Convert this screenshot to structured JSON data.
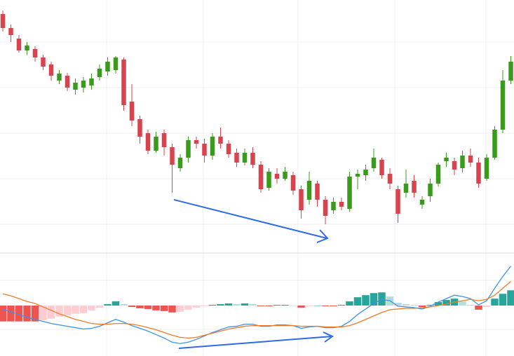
{
  "chart_data": [
    {
      "type": "candlestick",
      "up_color": "#3a9a1c",
      "down_color": "#d9434d",
      "ylim": [
        0,
        360
      ],
      "grid": true,
      "open": [
        340,
        320,
        305,
        288,
        290,
        278,
        268,
        245,
        252,
        232,
        235,
        238,
        250,
        258,
        260,
        275,
        215,
        190,
        170,
        145,
        170,
        150,
        120,
        135,
        160,
        155,
        138,
        165,
        155,
        142,
        128,
        142,
        125,
        92,
        112,
        105,
        110,
        90,
        75,
        98,
        75,
        60,
        72,
        62,
        108,
        110,
        120,
        132,
        112,
        90,
        85,
        102,
        68,
        80,
        98,
        130,
        130,
        120,
        138,
        128,
        105,
        135,
        175,
        245
      ],
      "high": [
        345,
        325,
        310,
        300,
        294,
        282,
        272,
        260,
        256,
        248,
        250,
        255,
        268,
        278,
        280,
        278,
        240,
        195,
        175,
        172,
        175,
        155,
        140,
        165,
        165,
        162,
        170,
        178,
        160,
        148,
        148,
        150,
        130,
        120,
        120,
        122,
        115,
        95,
        115,
        102,
        80,
        78,
        78,
        115,
        118,
        125,
        148,
        135,
        120,
        95,
        118,
        110,
        80,
        105,
        128,
        142,
        135,
        145,
        148,
        135,
        140,
        180,
        260,
        280
      ],
      "low": [
        315,
        300,
        285,
        282,
        272,
        260,
        245,
        240,
        230,
        225,
        228,
        232,
        245,
        252,
        255,
        202,
        180,
        155,
        140,
        142,
        138,
        85,
        115,
        128,
        148,
        128,
        132,
        148,
        135,
        122,
        124,
        120,
        85,
        88,
        98,
        102,
        82,
        48,
        68,
        65,
        40,
        55,
        60,
        58,
        90,
        102,
        115,
        105,
        90,
        42,
        78,
        78,
        62,
        72,
        94,
        122,
        110,
        114,
        122,
        92,
        102,
        132,
        170,
        240
      ],
      "close": [
        320,
        310,
        288,
        295,
        278,
        265,
        252,
        255,
        235,
        242,
        245,
        248,
        262,
        272,
        278,
        210,
        188,
        165,
        145,
        165,
        150,
        125,
        135,
        160,
        155,
        138,
        165,
        155,
        140,
        128,
        142,
        125,
        90,
        115,
        105,
        115,
        88,
        60,
        102,
        75,
        52,
        72,
        65,
        108,
        112,
        118,
        135,
        110,
        98,
        55,
        98,
        85,
        75,
        98,
        125,
        135,
        118,
        138,
        128,
        98,
        135,
        175,
        245,
        272
      ]
    },
    {
      "type": "macd",
      "ylim": [
        -7.3,
        7.5
      ],
      "hist_colors": {
        "up_strong": "#26a69a",
        "up_weak": "#b2dfdb",
        "down_strong": "#ef5350",
        "down_weak": "#ffcdd2"
      },
      "series": [
        {
          "type": "line",
          "color": "#3d93e6",
          "values": [
            -0.6,
            -0.9,
            -1.3,
            -1.7,
            -2.0,
            -2.3,
            -2.6,
            -2.8,
            -3.0,
            -3.2,
            -3.4,
            -3.3,
            -3.0,
            -2.5,
            -2.0,
            -2.4,
            -2.9,
            -3.3,
            -3.7,
            -4.2,
            -4.7,
            -5.3,
            -5.5,
            -5.3,
            -4.9,
            -4.4,
            -3.9,
            -3.5,
            -3.1,
            -3.0,
            -2.7,
            -2.7,
            -3.0,
            -3.0,
            -2.8,
            -2.8,
            -2.9,
            -3.3,
            -3.1,
            -3.0,
            -3.2,
            -3.2,
            -3.0,
            -2.3,
            -1.3,
            -0.5,
            0.3,
            0.9,
            0.7,
            -0.1,
            -0.2,
            -0.3,
            -0.5,
            -0.1,
            0.5,
            1.0,
            1.5,
            1.3,
            1.0,
            0.1,
            0.7,
            2.5,
            4.2,
            5.7
          ]
        },
        {
          "type": "line",
          "color": "#f07c28",
          "values": [
            1.7,
            1.4,
            1.0,
            0.6,
            0.3,
            -0.2,
            -0.7,
            -1.2,
            -1.6,
            -2.0,
            -2.3,
            -2.6,
            -2.7,
            -2.7,
            -2.6,
            -2.6,
            -2.7,
            -2.9,
            -3.2,
            -3.5,
            -3.9,
            -4.3,
            -4.6,
            -4.7,
            -4.6,
            -4.3,
            -4.0,
            -3.7,
            -3.4,
            -3.2,
            -3.0,
            -2.9,
            -2.9,
            -2.9,
            -2.9,
            -2.9,
            -2.9,
            -3.0,
            -3.0,
            -3.0,
            -3.1,
            -3.1,
            -3.1,
            -2.9,
            -2.5,
            -2.0,
            -1.5,
            -1.0,
            -0.6,
            -0.5,
            -0.4,
            -0.4,
            -0.3,
            -0.2,
            0.0,
            0.2,
            0.5,
            0.7,
            0.9,
            0.7,
            0.9,
            1.5,
            2.5,
            3.5
          ]
        },
        {
          "type": "bar",
          "values": [
            -2.3,
            -2.3,
            -2.3,
            -2.3,
            -2.3,
            -2.1,
            -1.9,
            -1.6,
            -1.4,
            -1.2,
            -1.1,
            -0.7,
            -0.3,
            0.2,
            0.6,
            0.2,
            -0.2,
            -0.4,
            -0.5,
            -0.7,
            -0.8,
            -1.0,
            -0.9,
            -0.6,
            -0.3,
            -0.1,
            0.1,
            0.2,
            0.3,
            0.2,
            0.3,
            0.2,
            -0.1,
            -0.1,
            0.1,
            0.1,
            0.0,
            -0.3,
            -0.1,
            0.0,
            -0.1,
            -0.1,
            0.1,
            0.6,
            1.2,
            1.5,
            1.8,
            1.9,
            1.3,
            0.4,
            0.2,
            0.1,
            -0.2,
            0.1,
            0.5,
            0.8,
            1.0,
            0.6,
            0.1,
            -0.6,
            -0.2,
            1.0,
            1.7,
            2.2
          ]
        }
      ]
    }
  ]
}
